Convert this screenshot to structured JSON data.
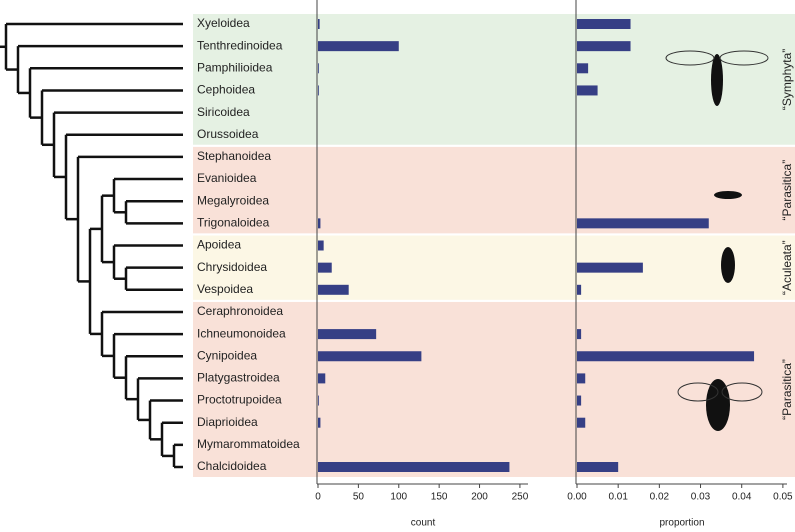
{
  "chart_data": [
    {
      "type": "bar",
      "orientation": "horizontal",
      "categories": [
        "Xyeloidea",
        "Tenthredinoidea",
        "Pamphilioidea",
        "Cephoidea",
        "Siricoidea",
        "Orussoidea",
        "Stephanoidea",
        "Evanioidea",
        "Megalyroidea",
        "Trigonaloidea",
        "Apoidea",
        "Chrysidoidea",
        "Vespoidea",
        "Ceraphronoidea",
        "Ichneumonoidea",
        "Cynipoidea",
        "Platygastroidea",
        "Proctotrupoidea",
        "Diaprioidea",
        "Mymarommatoidea",
        "Chalcidoidea"
      ],
      "label_colors": [
        "#222",
        "#222",
        "#222",
        "#222",
        "#222",
        "#999",
        "#999",
        "#222",
        "#999",
        "#999",
        "#222",
        "#222",
        "#222",
        "#222",
        "#222",
        "#222",
        "#222",
        "#222",
        "#222",
        "#999",
        "#222"
      ],
      "values": [
        2,
        100,
        1,
        1,
        0,
        0,
        0,
        0,
        0,
        3,
        7,
        17,
        38,
        0,
        72,
        128,
        9,
        1,
        3,
        0,
        237
      ],
      "color": "#363f85",
      "xlabel": "count",
      "xlim": [
        0,
        260
      ],
      "xticks": [
        0,
        50,
        100,
        150,
        200,
        250
      ]
    },
    {
      "type": "bar",
      "orientation": "horizontal",
      "values": [
        0.013,
        0.013,
        0.0027,
        0.005,
        0,
        0,
        0,
        0,
        0,
        0.032,
        0,
        0.016,
        0.001,
        0,
        0.001,
        0.043,
        0.002,
        0.001,
        0.002,
        0,
        0.01
      ],
      "color": "#363f85",
      "xlabel": "proportion",
      "xlim": [
        0,
        0.051
      ],
      "xticks": [
        {
          "value": 0,
          "label": "0.00"
        },
        0.01,
        0.02,
        0.03,
        0.04,
        0.05
      ]
    }
  ],
  "clade_labels": [
    {
      "label": "“Symphyta”",
      "color": "#e5f1e3"
    },
    {
      "label": "“Parasitica”",
      "color": "#f9e1d8"
    },
    {
      "label": "“Aculeata”",
      "color": "#fcf7e5"
    },
    {
      "label": "“Parasitica”",
      "color": "#f9e1d8"
    }
  ]
}
